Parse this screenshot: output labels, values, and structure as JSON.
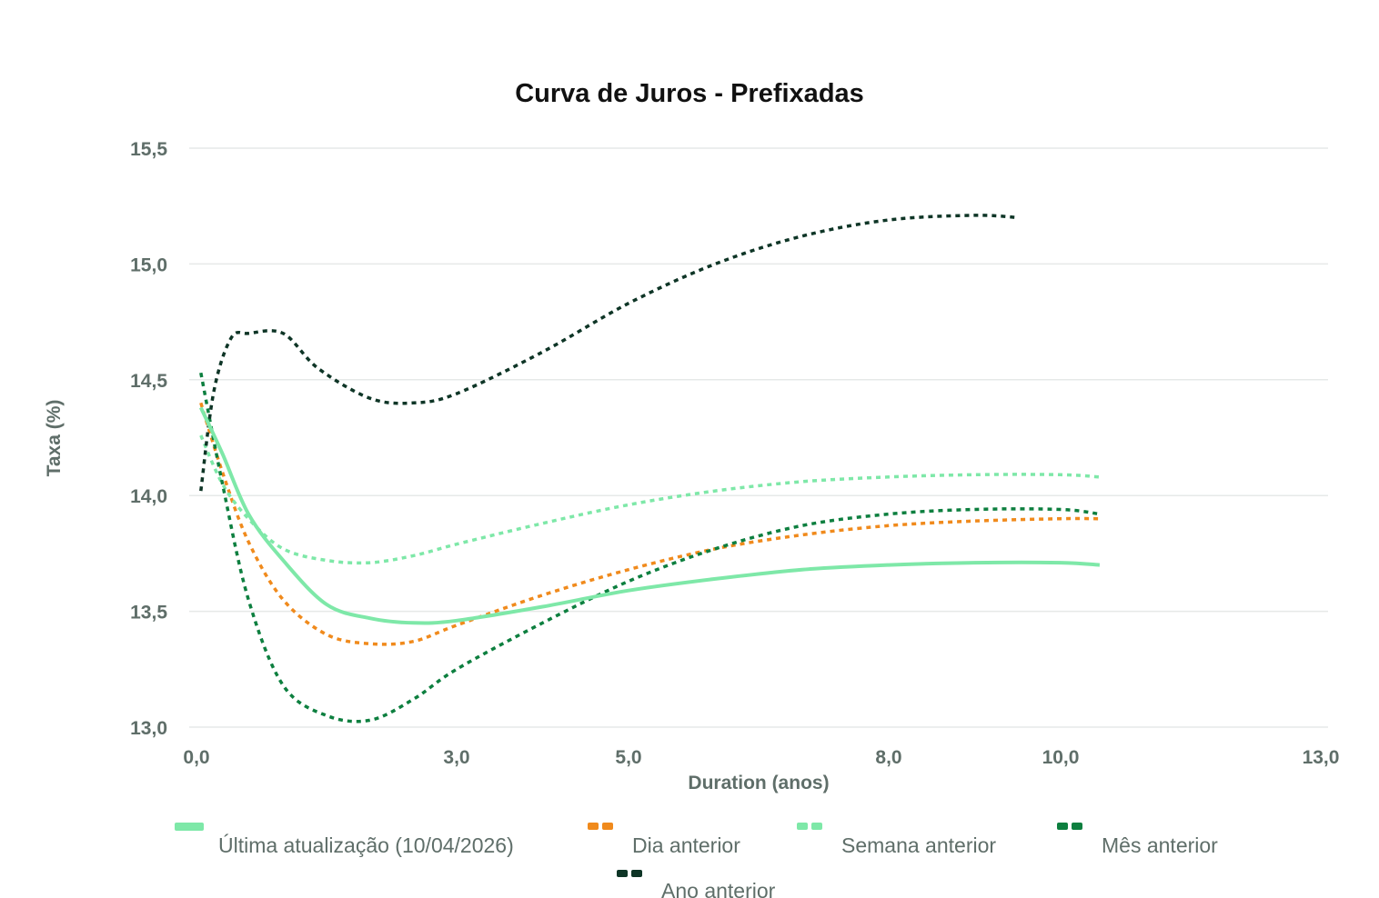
{
  "chart_data": {
    "type": "line",
    "title": "Curva de Juros - Prefixadas",
    "xlabel": "Duration (anos)",
    "ylabel": "Taxa (%)",
    "xlim": [
      0,
      13
    ],
    "ylim": [
      13.0,
      15.5
    ],
    "x_ticks": [
      {
        "value": 0,
        "label": "0,0"
      },
      {
        "value": 3,
        "label": "3,0"
      },
      {
        "value": 5,
        "label": "5,0"
      },
      {
        "value": 8,
        "label": "8,0"
      },
      {
        "value": 10,
        "label": "10,0"
      },
      {
        "value": 13,
        "label": "13,0"
      }
    ],
    "y_ticks": [
      {
        "value": 13.0,
        "label": "13,0"
      },
      {
        "value": 13.5,
        "label": "13,5"
      },
      {
        "value": 14.0,
        "label": "14,0"
      },
      {
        "value": 14.5,
        "label": "14,5"
      },
      {
        "value": 15.0,
        "label": "15,0"
      },
      {
        "value": 15.5,
        "label": "15,5"
      }
    ],
    "grid": true,
    "legend_position": "bottom",
    "series": [
      {
        "name": "Última atualização (10/04/2026)",
        "color": "#7ee8a8",
        "style": "solid",
        "x": [
          0.05,
          0.3,
          0.6,
          1.0,
          1.5,
          2.0,
          2.5,
          3.0,
          4.0,
          5.0,
          6.0,
          7.0,
          8.0,
          9.0,
          10.0,
          10.45
        ],
        "y": [
          14.38,
          14.18,
          13.92,
          13.72,
          13.53,
          13.47,
          13.45,
          13.46,
          13.52,
          13.59,
          13.64,
          13.68,
          13.7,
          13.71,
          13.71,
          13.7
        ]
      },
      {
        "name": "Dia anterior",
        "color": "#f08a1c",
        "style": "dotted",
        "x": [
          0.05,
          0.3,
          0.6,
          1.0,
          1.5,
          2.0,
          2.5,
          3.0,
          4.0,
          5.0,
          6.0,
          7.0,
          8.0,
          9.0,
          10.0,
          10.45
        ],
        "y": [
          14.4,
          14.1,
          13.8,
          13.55,
          13.4,
          13.36,
          13.37,
          13.44,
          13.57,
          13.68,
          13.77,
          13.83,
          13.87,
          13.89,
          13.9,
          13.9
        ]
      },
      {
        "name": "Semana anterior",
        "color": "#7ee8a8",
        "style": "dotted",
        "x": [
          0.05,
          0.3,
          0.6,
          1.0,
          1.5,
          2.0,
          2.5,
          3.0,
          4.0,
          5.0,
          6.0,
          7.0,
          8.0,
          9.0,
          10.0,
          10.45
        ],
        "y": [
          14.26,
          14.05,
          13.9,
          13.77,
          13.72,
          13.71,
          13.74,
          13.79,
          13.88,
          13.96,
          14.02,
          14.06,
          14.08,
          14.09,
          14.09,
          14.08
        ]
      },
      {
        "name": "Mês anterior",
        "color": "#0d7f3f",
        "style": "dotted",
        "x": [
          0.05,
          0.3,
          0.6,
          1.0,
          1.5,
          2.0,
          2.5,
          3.0,
          4.0,
          5.0,
          6.0,
          7.0,
          8.0,
          9.0,
          10.0,
          10.45
        ],
        "y": [
          14.53,
          14.05,
          13.55,
          13.18,
          13.05,
          13.03,
          13.12,
          13.25,
          13.45,
          13.63,
          13.77,
          13.87,
          13.92,
          13.94,
          13.94,
          13.92
        ]
      },
      {
        "name": "Ano anterior",
        "color": "#0e3526",
        "style": "dotted",
        "x": [
          0.05,
          0.2,
          0.4,
          0.6,
          1.0,
          1.4,
          2.0,
          2.5,
          3.0,
          4.0,
          5.0,
          6.0,
          7.0,
          8.0,
          9.0,
          9.5
        ],
        "y": [
          14.02,
          14.45,
          14.68,
          14.7,
          14.7,
          14.55,
          14.42,
          14.4,
          14.44,
          14.62,
          14.83,
          15.0,
          15.12,
          15.19,
          15.21,
          15.2
        ]
      }
    ]
  }
}
